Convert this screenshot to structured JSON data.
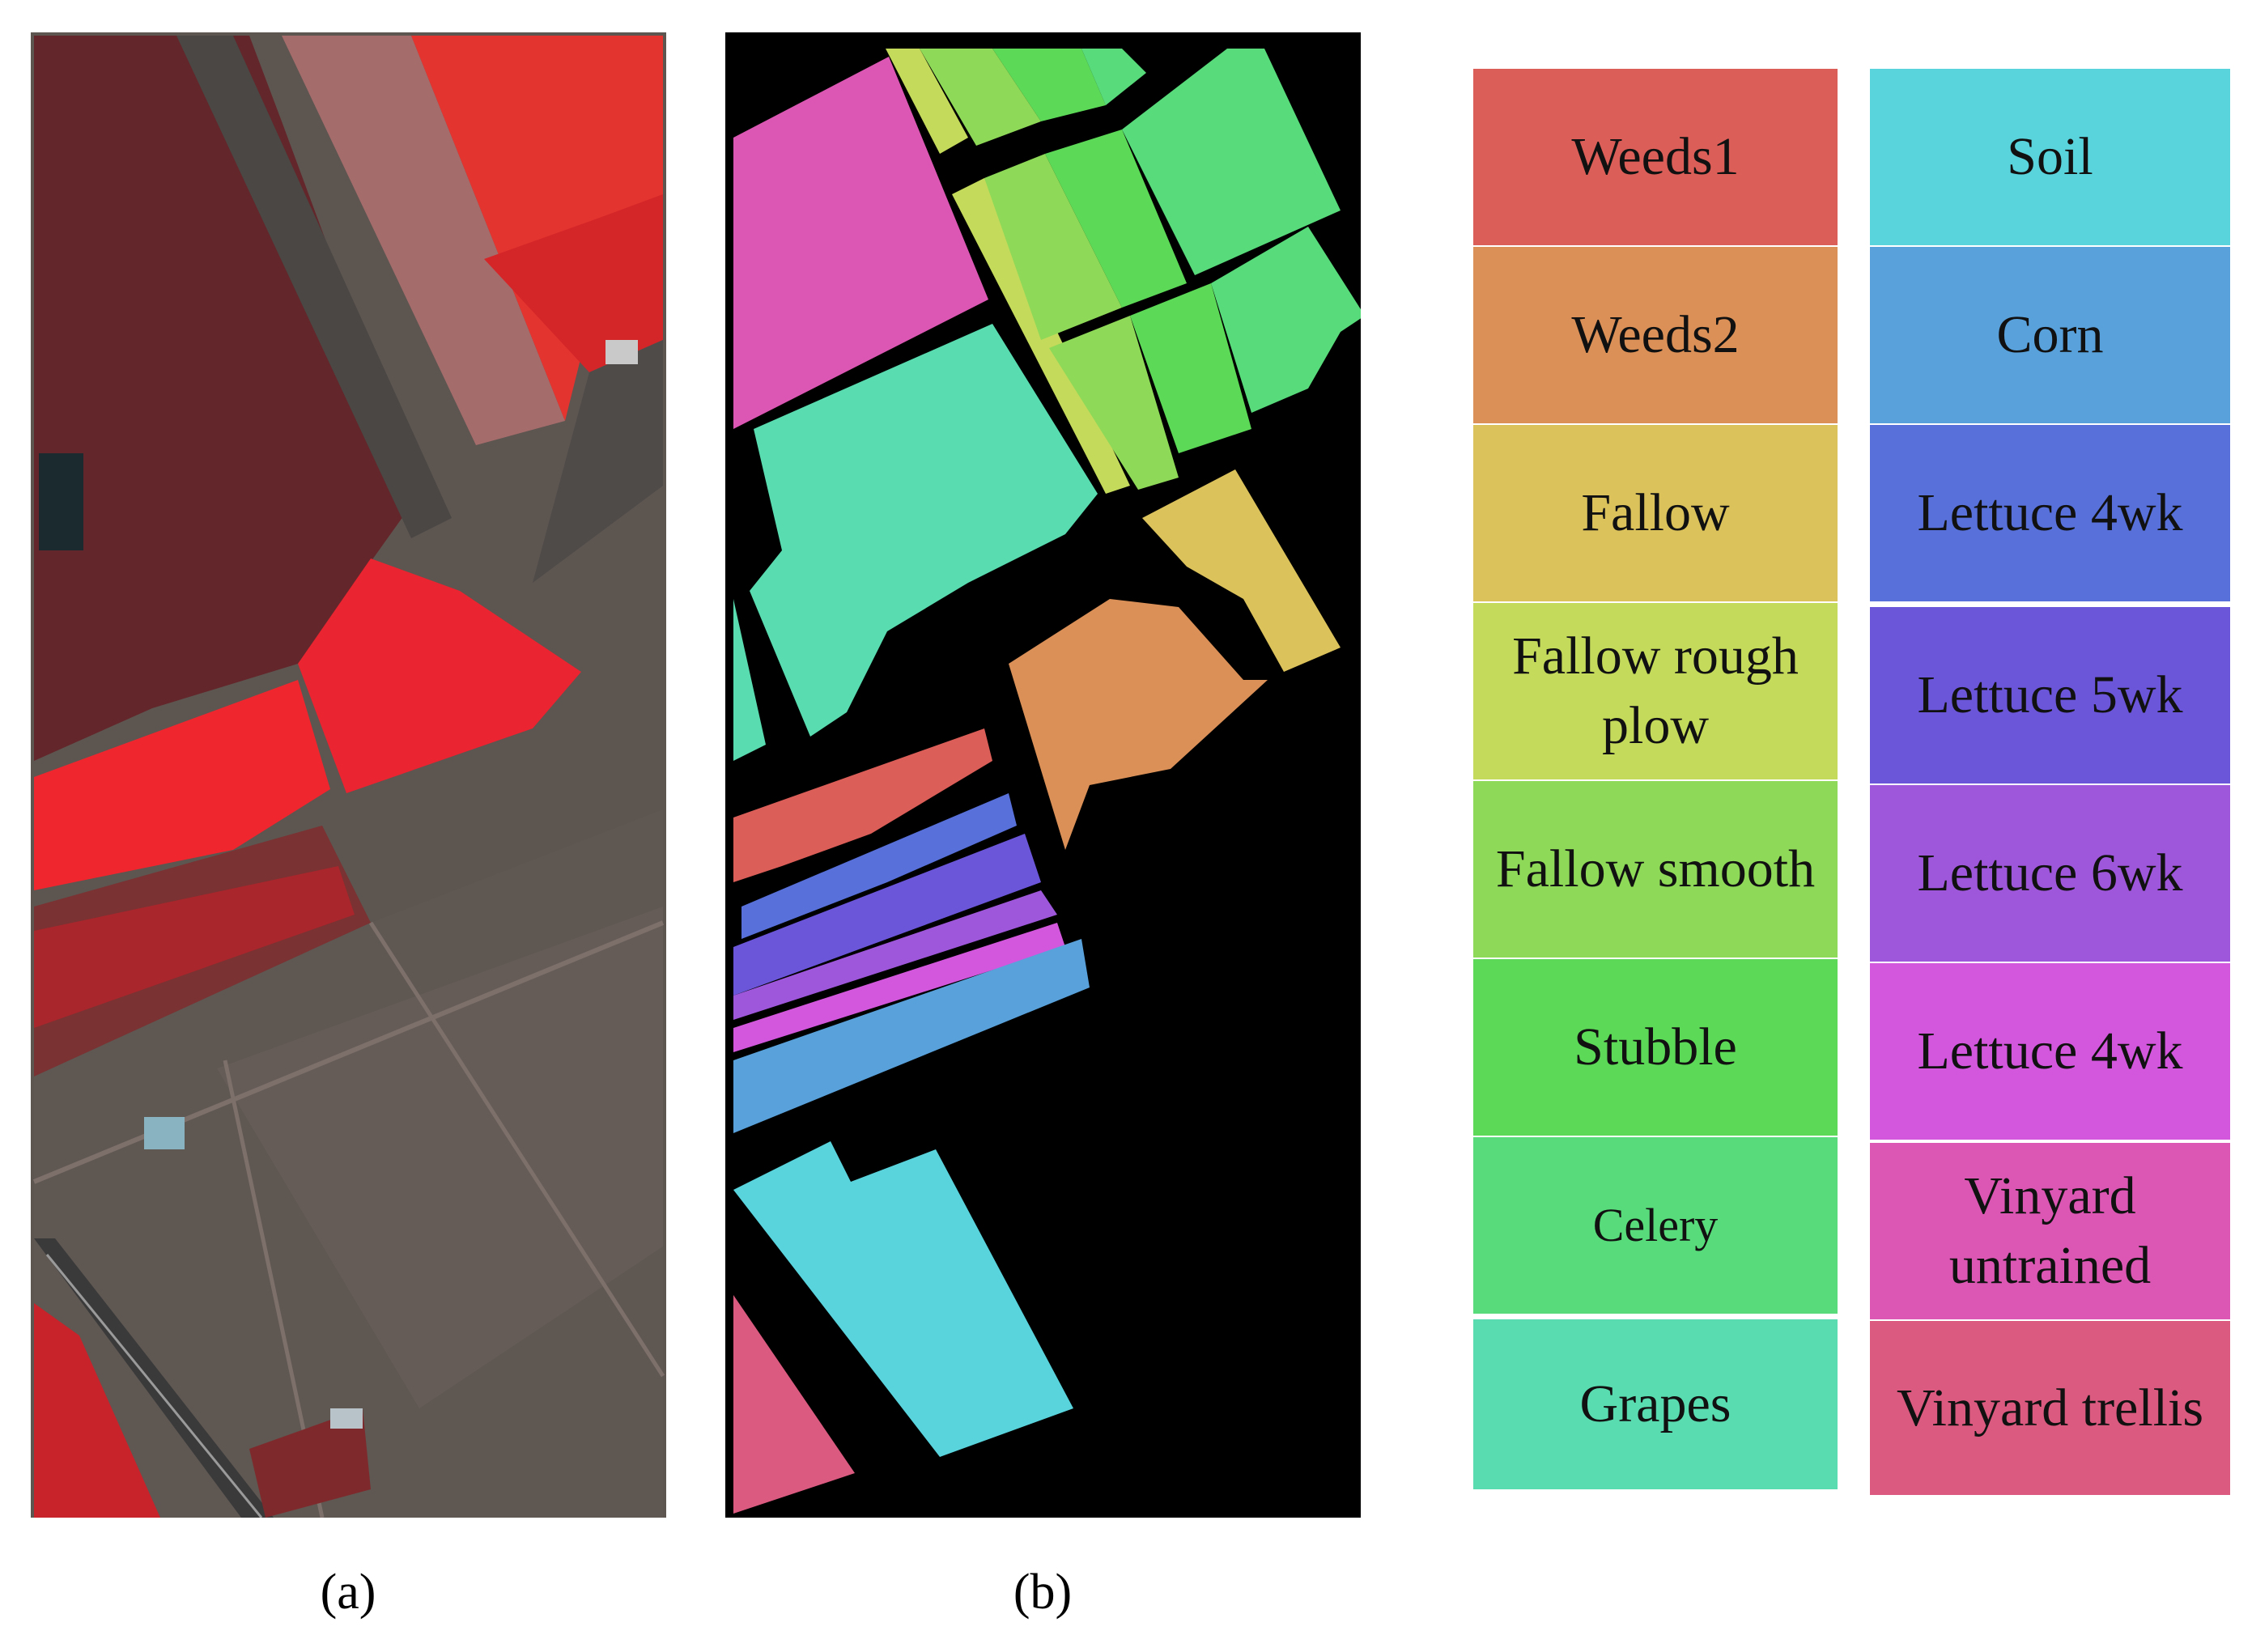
{
  "panels": [
    {
      "id": "a",
      "caption": "(a)"
    },
    {
      "id": "b",
      "caption": "(b)"
    }
  ],
  "legend": {
    "column_left": [
      {
        "label": "Weeds1",
        "color": "#dc5e58"
      },
      {
        "label": "Weeds2",
        "color": "#db9057"
      },
      {
        "label": "Fallow",
        "color": "#dcc25b"
      },
      {
        "label": "Fallow rough plow",
        "color": "#c4da5a"
      },
      {
        "label": "Fallow smooth",
        "color": "#8ed957"
      },
      {
        "label": "Stubble",
        "color": "#5cd957"
      },
      {
        "label": "Celery",
        "color": "#57db7b"
      },
      {
        "label": "Grapes",
        "color": "#58dcb0"
      }
    ],
    "column_right": [
      {
        "label": "Soil",
        "color": "#59d3dc"
      },
      {
        "label": "Corn",
        "color": "#58a1db"
      },
      {
        "label": "Lettuce 4wk",
        "color": "#5770da"
      },
      {
        "label": "Lettuce 5wk",
        "color": "#6b56d9"
      },
      {
        "label": "Lettuce 6wk",
        "color": "#9e57da"
      },
      {
        "label": "Lettuce 4wk",
        "color": "#d257dc"
      },
      {
        "label": "Vinyard untrained",
        "color": "#dc57b3"
      },
      {
        "label": "Vinyard trellis",
        "color": "#db5a80"
      }
    ]
  },
  "colors": {
    "map_background": "#000000",
    "satellite_soil": "#5d5550",
    "satellite_red": "#e7262b"
  }
}
